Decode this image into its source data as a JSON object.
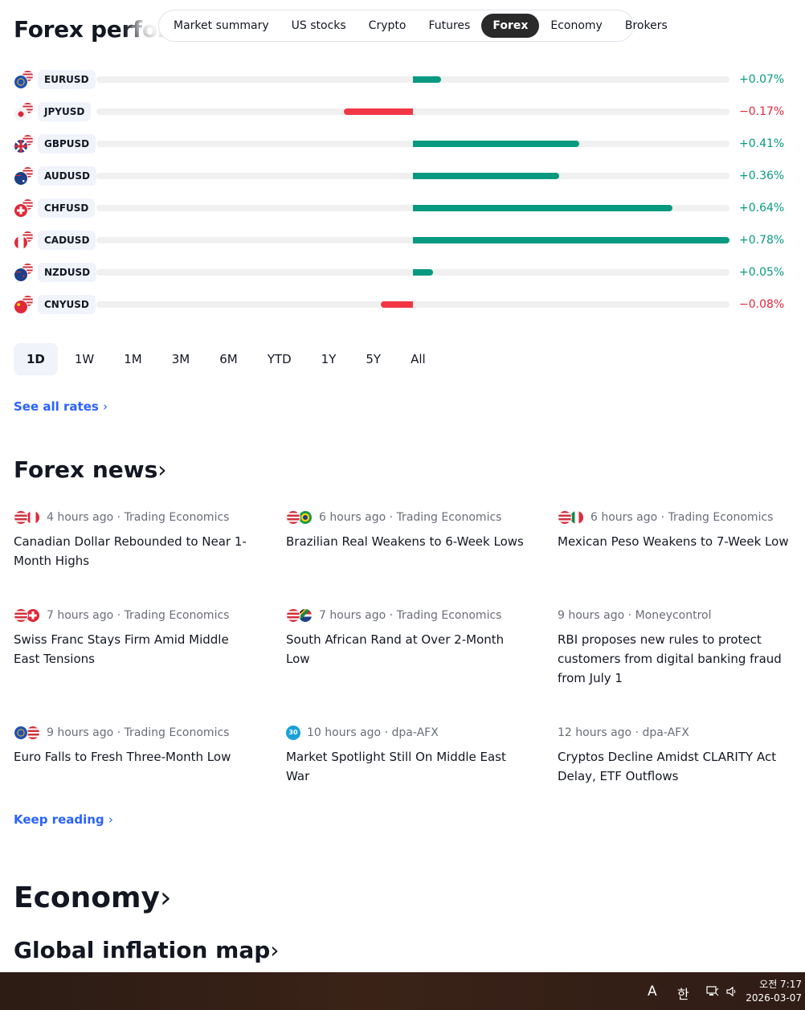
{
  "header": {
    "title": "Forex performance",
    "tabs": [
      "Market summary",
      "US stocks",
      "Crypto",
      "Futures",
      "Forex",
      "Economy",
      "Brokers"
    ],
    "active_tab": "Forex"
  },
  "forex_performance": {
    "rows": [
      {
        "symbol": "EURUSD",
        "change": "+0.07%",
        "value": 0.07,
        "flag": "eu"
      },
      {
        "symbol": "JPYUSD",
        "change": "−0.17%",
        "value": -0.17,
        "flag": "jp"
      },
      {
        "symbol": "GBPUSD",
        "change": "+0.41%",
        "value": 0.41,
        "flag": "gb"
      },
      {
        "symbol": "AUDUSD",
        "change": "+0.36%",
        "value": 0.36,
        "flag": "au"
      },
      {
        "symbol": "CHFUSD",
        "change": "+0.64%",
        "value": 0.64,
        "flag": "ch"
      },
      {
        "symbol": "CADUSD",
        "change": "+0.78%",
        "value": 0.78,
        "flag": "ca"
      },
      {
        "symbol": "NZDUSD",
        "change": "+0.05%",
        "value": 0.05,
        "flag": "nz"
      },
      {
        "symbol": "CNYUSD",
        "change": "−0.08%",
        "value": -0.08,
        "flag": "cn"
      }
    ],
    "scale_max": 0.78,
    "periods": [
      "1D",
      "1W",
      "1M",
      "3M",
      "6M",
      "YTD",
      "1Y",
      "5Y",
      "All"
    ],
    "active_period": "1D",
    "see_all_label": "See all rates",
    "chevron": "›"
  },
  "forex_news": {
    "title": "Forex news",
    "chevron": "›",
    "items": [
      {
        "time": "4 hours ago",
        "source": "Trading Economics",
        "title": "Canadian Dollar Rebounded to Near 1-Month Highs",
        "flags": [
          "us",
          "ca"
        ]
      },
      {
        "time": "6 hours ago",
        "source": "Trading Economics",
        "title": "Brazilian Real Weakens to 6-Week Lows",
        "flags": [
          "us",
          "br"
        ]
      },
      {
        "time": "6 hours ago",
        "source": "Trading Economics",
        "title": "Mexican Peso Weakens to 7-Week Low",
        "flags": [
          "us",
          "mx"
        ]
      },
      {
        "time": "7 hours ago",
        "source": "Trading Economics",
        "title": "Swiss Franc Stays Firm Amid Middle East Tensions",
        "flags": [
          "us",
          "ch"
        ]
      },
      {
        "time": "7 hours ago",
        "source": "Trading Economics",
        "title": "South African Rand at Over 2-Month Low",
        "flags": [
          "us",
          "za"
        ]
      },
      {
        "time": "9 hours ago",
        "source": "Moneycontrol",
        "title": "RBI proposes new rules to protect customers from digital banking fraud from July 1",
        "flags": []
      },
      {
        "time": "9 hours ago",
        "source": "Trading Economics",
        "title": "Euro Falls to Fresh Three-Month Low",
        "flags": [
          "eu",
          "us"
        ]
      },
      {
        "time": "10 hours ago",
        "source": "dpa-AFX",
        "title": "Market Spotlight Still On Middle East War",
        "flags": [],
        "badge": "30"
      },
      {
        "time": "12 hours ago",
        "source": "dpa-AFX",
        "title": "Cryptos Decline Amidst CLARITY Act Delay, ETF Outflows",
        "flags": []
      }
    ],
    "separator": "·",
    "keep_reading_label": "Keep reading"
  },
  "economy": {
    "title": "Economy",
    "subtitle": "Global inflation map",
    "chevron": "›"
  },
  "taskbar": {
    "ime_latin": "A",
    "ime_korean": "한",
    "time": "오전 7:17",
    "date": "2026-03-07"
  },
  "colors": {
    "positive": "#089981",
    "negative": "#f23645",
    "link": "#2962ff",
    "text": "#131722",
    "muted": "#6a6d78"
  }
}
